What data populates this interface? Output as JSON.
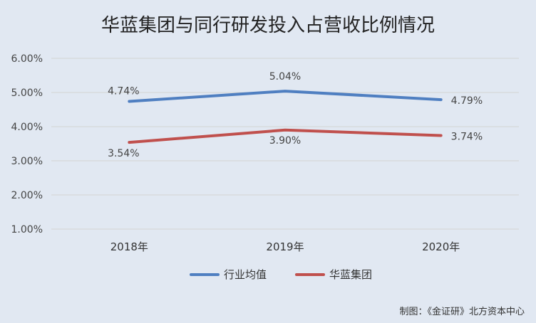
{
  "chart_data": {
    "type": "line",
    "title": "华蓝集团与同行研发投入占营收比例情况",
    "categories": [
      "2018年",
      "2019年",
      "2020年"
    ],
    "y_ticks": [
      "1.00%",
      "2.00%",
      "3.00%",
      "4.00%",
      "5.00%",
      "6.00%"
    ],
    "ylim": [
      1.0,
      6.0
    ],
    "grid": true,
    "legend_position": "bottom",
    "series": [
      {
        "name": "行业均值",
        "values": [
          4.74,
          5.04,
          4.79
        ],
        "labels": [
          "4.74%",
          "5.04%",
          "4.79%"
        ],
        "color": "#4f7fc1"
      },
      {
        "name": "华蓝集团",
        "values": [
          3.54,
          3.9,
          3.74
        ],
        "labels": [
          "3.54%",
          "3.90%",
          "3.74%"
        ],
        "color": "#c0504d"
      }
    ],
    "source": "制图：《金证研》北方资本中心"
  }
}
